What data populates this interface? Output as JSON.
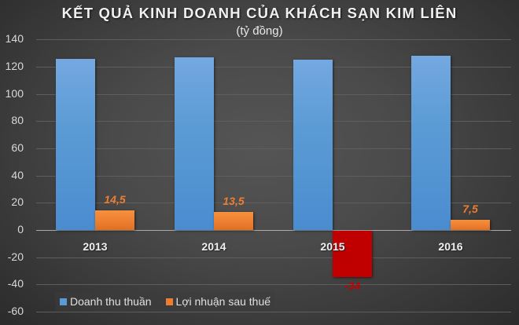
{
  "chart_data": {
    "type": "bar",
    "title": "KẾT QUẢ KINH DOANH CỦA KHÁCH SẠN KIM LIÊN",
    "subtitle": "(tỷ đồng)",
    "categories": [
      "2013",
      "2014",
      "2015",
      "2016"
    ],
    "series": [
      {
        "name": "Doanh thu thuần",
        "color": "#5b9bd5",
        "values": [
          126,
          127,
          125,
          128
        ],
        "data_labels": [
          "",
          "",
          "",
          ""
        ]
      },
      {
        "name": "Lợi nhuận sau thuế",
        "color": "#ed7d31",
        "negative_color": "#c00000",
        "values": [
          14.5,
          13.5,
          -34,
          7.5
        ],
        "data_labels": [
          "14,5",
          "13,5",
          "-34",
          "7,5"
        ]
      }
    ],
    "xlabel": "",
    "ylabel": "",
    "ylim": [
      -60,
      140
    ],
    "yticks": [
      "140",
      "120",
      "100",
      "80",
      "60",
      "40",
      "20",
      "0",
      "-20",
      "-40",
      "-60"
    ],
    "grid": true,
    "legend_position": "bottom-left"
  },
  "legend": {
    "items": [
      {
        "label": "Doanh thu thuần",
        "color": "#5b9bd5"
      },
      {
        "label": "Lợi nhuận sau thuế",
        "color": "#ed7d31"
      }
    ]
  },
  "colors": {
    "data_label_positive": "#ed7d31",
    "data_label_negative": "#c00000"
  }
}
